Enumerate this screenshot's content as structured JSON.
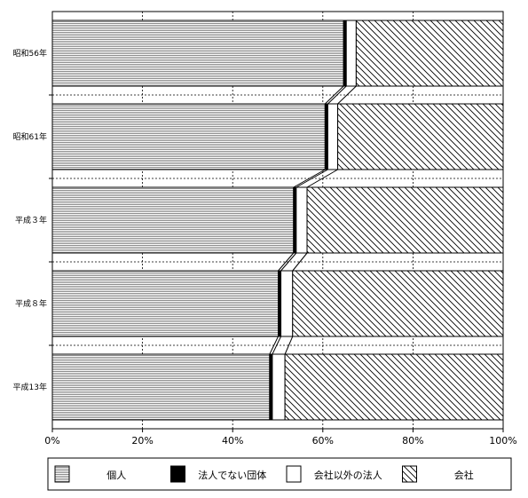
{
  "chart_data": {
    "type": "bar",
    "orientation": "horizontal",
    "stacked": "percent",
    "categories": [
      "昭和56年",
      "昭和61年",
      "平成３年",
      "平成８年",
      "平成13年"
    ],
    "series": [
      {
        "name": "個人",
        "values": [
          64.6,
          60.5,
          53.5,
          50.1,
          48.2
        ],
        "color": "#d9d9d9",
        "pattern": "horizontal-lines"
      },
      {
        "name": "法人でない団体",
        "values": [
          0.6,
          0.6,
          0.6,
          0.6,
          0.6
        ],
        "color": "#000000",
        "pattern": "solid"
      },
      {
        "name": "会社以外の法人",
        "values": [
          2.2,
          2.2,
          2.4,
          2.6,
          2.8
        ],
        "color": "#ffffff",
        "pattern": "solid"
      },
      {
        "name": "会社",
        "values": [
          32.6,
          36.7,
          43.5,
          46.7,
          48.4
        ],
        "color": "#ffffff",
        "pattern": "diagonal-hatch"
      }
    ],
    "x_ticks": [
      "0%",
      "20%",
      "40%",
      "60%",
      "80%",
      "100%"
    ],
    "xlim": [
      0,
      100
    ],
    "grid": "vertical-dashed",
    "legend_position": "bottom",
    "series_lines": true,
    "title": "",
    "xlabel": "",
    "ylabel": ""
  }
}
